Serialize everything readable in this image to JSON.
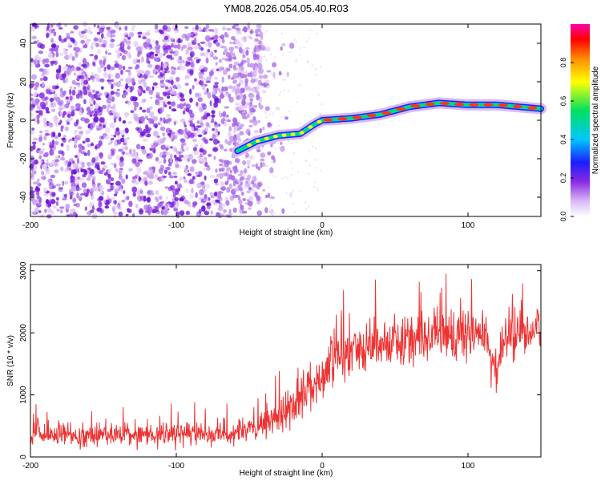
{
  "chart_data": [
    {
      "type": "heatmap",
      "title": "YM08.2026.054.05.40.R03",
      "xlabel": "Height of straight line (km)",
      "ylabel": "Frequency (Hz)",
      "xlim": [
        -200,
        150
      ],
      "ylim": [
        -50,
        50
      ],
      "x_ticks": [
        -200,
        -100,
        0,
        100
      ],
      "y_ticks": [
        -40,
        -20,
        0,
        20,
        40
      ],
      "trace": {
        "x": [
          -58,
          -45,
          -30,
          -15,
          -5,
          0,
          20,
          40,
          60,
          80,
          100,
          120,
          150
        ],
        "y": [
          -16,
          -11,
          -8,
          -7,
          -2,
          0,
          1,
          3,
          7,
          9,
          8,
          8,
          6
        ]
      },
      "colorbar": {
        "label": "Normalized spectral amplitude",
        "range": [
          0,
          1
        ],
        "ticks": [
          0.0,
          0.2,
          0.4,
          0.6,
          0.8
        ],
        "tick_labels": [
          "0.0",
          "0.2",
          "0.4",
          "0.6",
          "0.8"
        ],
        "colors": [
          "#ffffff",
          "#d9b8f5",
          "#8a2be2",
          "#1c1cff",
          "#00c8ff",
          "#00e060",
          "#ffff00",
          "#ff8c00",
          "#ff0000",
          "#ff00aa"
        ]
      }
    },
    {
      "type": "line",
      "xlabel": "Height of straight line (km)",
      "ylabel": "SNR (10 * v/v)",
      "xlim": [
        -200,
        150
      ],
      "ylim": [
        0,
        3100
      ],
      "x_ticks": [
        -200,
        -100,
        0,
        100
      ],
      "y_ticks": [
        0,
        1000,
        2000,
        3000
      ],
      "series": [
        {
          "name": "SNR",
          "color": "#ee3333",
          "x": [
            -200,
            -150,
            -100,
            -70,
            -50,
            -40,
            -30,
            -20,
            -10,
            0,
            10,
            20,
            30,
            40,
            60,
            80,
            100,
            110,
            118,
            120,
            122,
            130,
            150
          ],
          "mean": [
            350,
            360,
            360,
            380,
            420,
            480,
            650,
            850,
            1100,
            1350,
            1550,
            1700,
            1800,
            1850,
            1900,
            1950,
            2000,
            2000,
            1500,
            1200,
            1700,
            2000,
            2050
          ],
          "spread": [
            200,
            200,
            200,
            210,
            230,
            260,
            330,
            380,
            420,
            450,
            480,
            480,
            480,
            470,
            460,
            460,
            470,
            480,
            500,
            550,
            480,
            480,
            480
          ]
        }
      ]
    }
  ]
}
